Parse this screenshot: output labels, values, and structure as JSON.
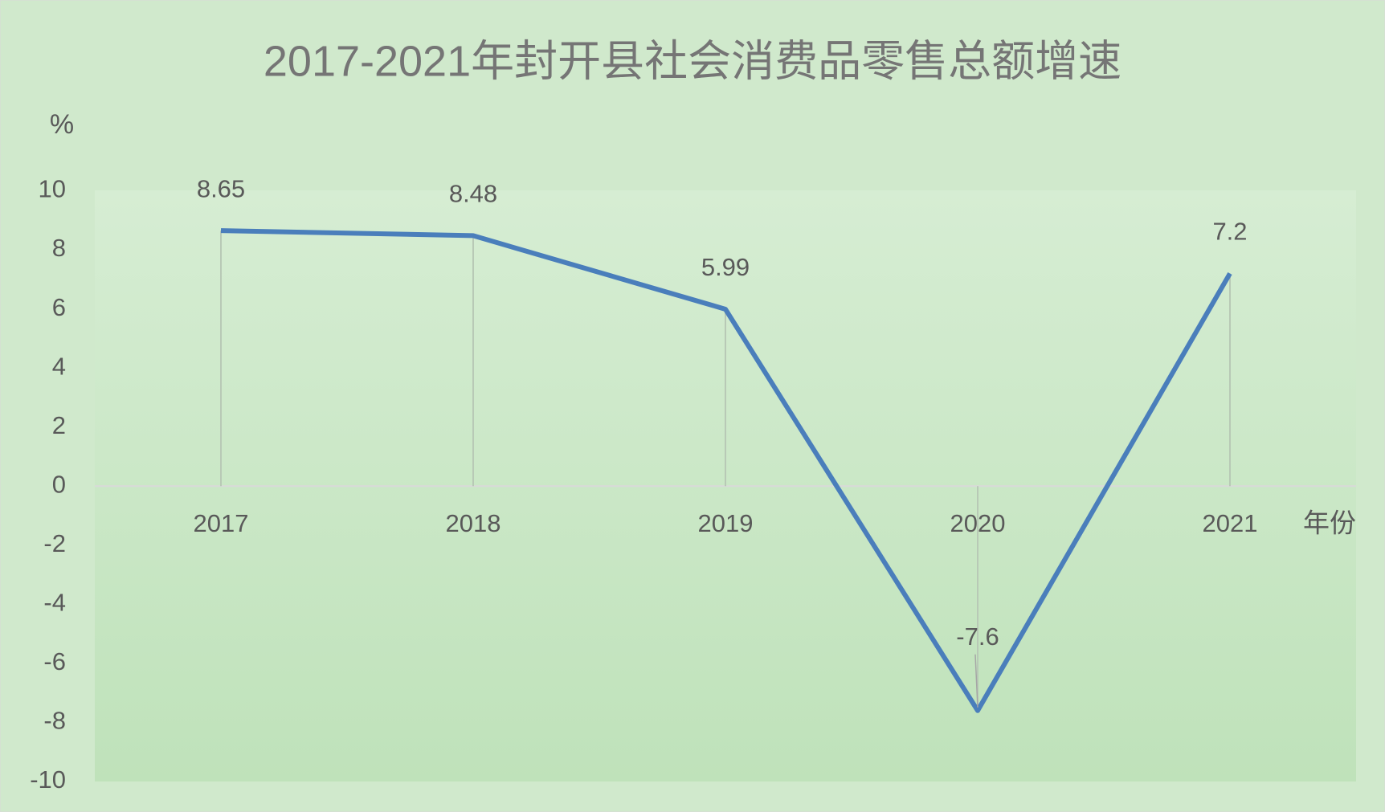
{
  "chart_data": {
    "type": "line",
    "title": "2017-2021年封开县社会消费品零售总额增速",
    "y_label": "%",
    "x_label": "年份",
    "categories": [
      "2017",
      "2018",
      "2019",
      "2020",
      "2021"
    ],
    "values": [
      8.65,
      8.48,
      5.99,
      -7.6,
      7.2
    ],
    "color": "#4a7ebb",
    "ylim": [
      -10,
      10
    ],
    "yticks": [
      -10,
      -8,
      -6,
      -4,
      -2,
      0,
      2,
      4,
      6,
      8,
      10
    ],
    "grid": false,
    "drop_lines": true
  }
}
